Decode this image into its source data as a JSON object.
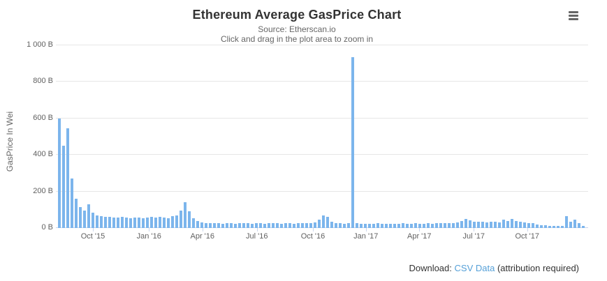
{
  "header": {
    "title": "Ethereum Average GasPrice Chart",
    "subtitle_line1": "Source: Etherscan.io",
    "subtitle_line2": "Click and drag in the plot area to zoom in"
  },
  "download": {
    "label": "Download:",
    "link_text": "CSV Data",
    "suffix": " (attribution required)"
  },
  "colors": {
    "bar": "#7cb5ec",
    "grid": "#e6e6e6",
    "axis_line": "#ccd6eb",
    "tick_label": "#606060",
    "title": "#333333",
    "subtitle": "#666666",
    "link": "#55a0d8",
    "menu_icon": "#666666"
  },
  "chart_data": {
    "type": "bar",
    "title": "Ethereum Average GasPrice Chart",
    "subtitle": [
      "Source: Etherscan.io",
      "Click and drag in the plot area to zoom in"
    ],
    "xlabel": "",
    "ylabel": "GasPrice In Wei",
    "unit": "B (billion Wei)",
    "ylim": [
      0,
      1000
    ],
    "grid": "horizontal-only",
    "legend": "none",
    "x_interval": "weekly averages",
    "x_range": "Aug 2015 - Dec 2017",
    "y_ticks": [
      {
        "value": 0,
        "label": "0 B"
      },
      {
        "value": 200,
        "label": "200 B"
      },
      {
        "value": 400,
        "label": "400 B"
      },
      {
        "value": 600,
        "label": "600 B"
      },
      {
        "value": 800,
        "label": "800 B"
      },
      {
        "value": 1000,
        "label": "1 000 B"
      }
    ],
    "x_ticks": [
      {
        "label": "Oct '15",
        "pos": 0.064
      },
      {
        "label": "Jan '16",
        "pos": 0.171
      },
      {
        "label": "Apr '16",
        "pos": 0.273
      },
      {
        "label": "Jul '16",
        "pos": 0.377
      },
      {
        "label": "Oct '16",
        "pos": 0.484
      },
      {
        "label": "Jan '17",
        "pos": 0.585
      },
      {
        "label": "Apr '17",
        "pos": 0.687
      },
      {
        "label": "Jul '17",
        "pos": 0.791
      },
      {
        "label": "Oct '17",
        "pos": 0.893
      }
    ],
    "values": [
      600,
      450,
      545,
      270,
      160,
      115,
      95,
      130,
      85,
      70,
      65,
      62,
      60,
      58,
      56,
      60,
      57,
      55,
      58,
      56,
      54,
      57,
      60,
      58,
      62,
      57,
      55,
      65,
      70,
      95,
      140,
      90,
      55,
      40,
      32,
      28,
      26,
      25,
      27,
      24,
      26,
      25,
      23,
      26,
      25,
      27,
      24,
      26,
      25,
      24,
      26,
      25,
      27,
      24,
      25,
      26,
      24,
      25,
      27,
      25,
      26,
      30,
      45,
      70,
      60,
      35,
      28,
      25,
      24,
      25,
      935,
      26,
      24,
      23,
      24,
      23,
      25,
      24,
      23,
      24,
      22,
      24,
      25,
      23,
      24,
      25,
      23,
      24,
      25,
      23,
      26,
      25,
      27,
      26,
      28,
      30,
      40,
      50,
      42,
      36,
      34,
      36,
      32,
      35,
      33,
      30,
      45,
      38,
      48,
      40,
      35,
      30,
      28,
      25,
      20,
      16,
      14,
      12,
      10,
      10,
      12,
      65,
      35,
      45,
      28,
      10
    ]
  }
}
